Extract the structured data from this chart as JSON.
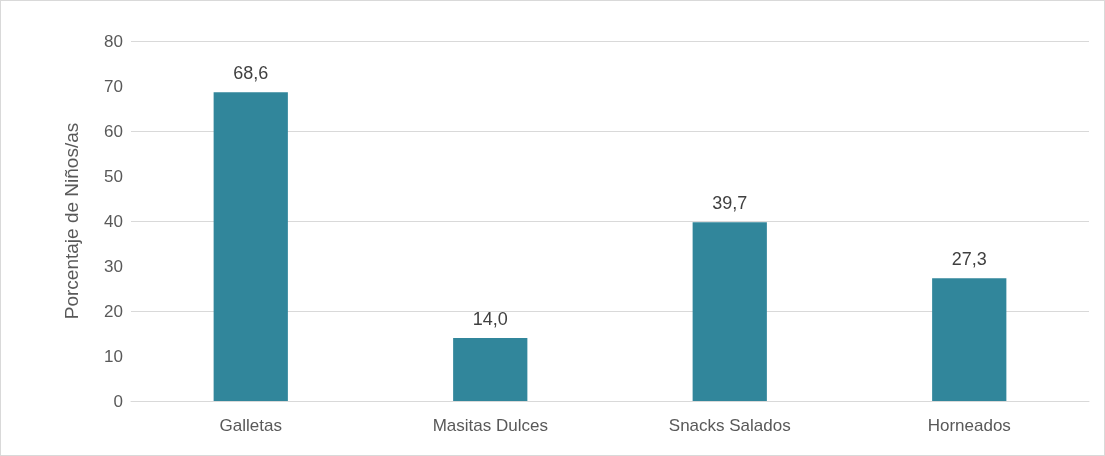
{
  "chart_data": {
    "type": "bar",
    "ylabel": "Porcentaje de Niños/as",
    "categories": [
      "Galletas",
      "Masitas Dulces",
      "Snacks Salados",
      "Horneados"
    ],
    "values": [
      68.6,
      14.0,
      39.7,
      27.3
    ],
    "value_labels": [
      "68,6",
      "14,0",
      "39,7",
      "27,3"
    ],
    "color": "#31869b",
    "ylim": [
      0,
      80
    ],
    "yticks": [
      0,
      10,
      20,
      30,
      40,
      50,
      60,
      70,
      80
    ],
    "grid": "y"
  }
}
